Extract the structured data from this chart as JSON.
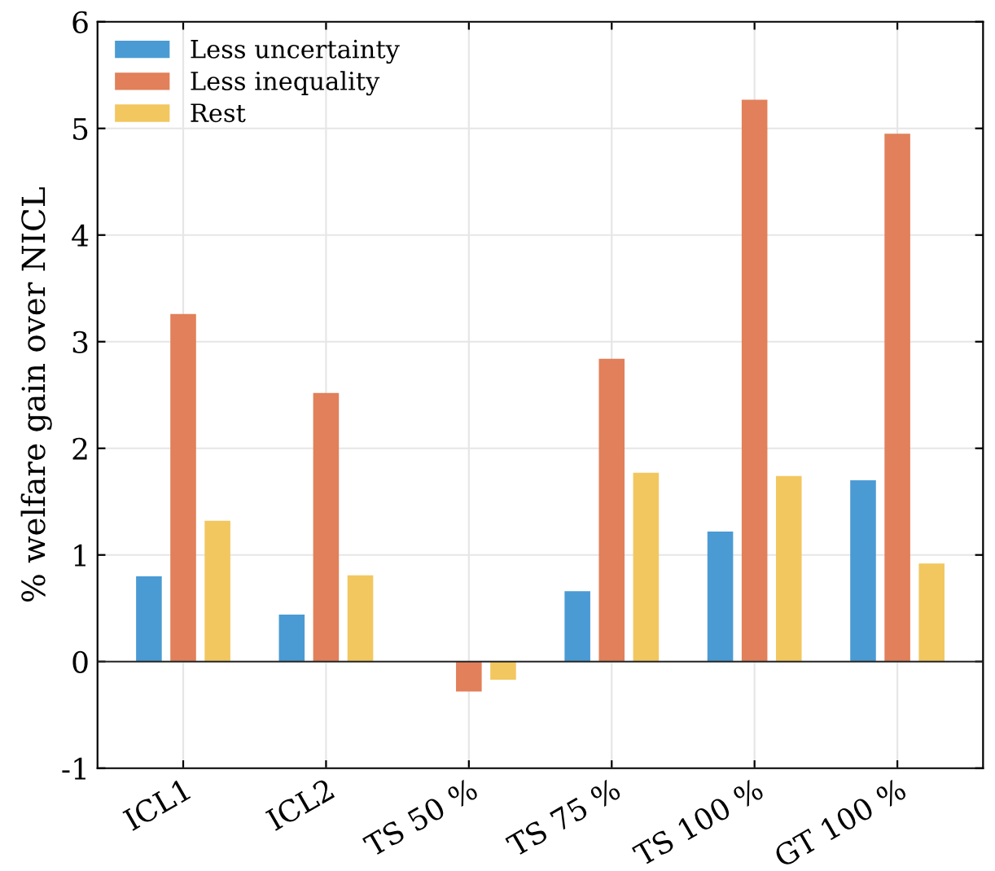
{
  "chart_data": {
    "type": "bar",
    "ylabel": "% welfare gain over NICL",
    "categories": [
      "ICL1",
      "ICL2",
      "TS 50 %",
      "TS 75 %",
      "TS 100 %",
      "GT 100 %"
    ],
    "series": [
      {
        "name": "Less uncertainty",
        "color": "#4a9bd4",
        "values": [
          0.8,
          0.44,
          0.0,
          0.66,
          1.22,
          1.7
        ]
      },
      {
        "name": "Less inequality",
        "color": "#e1805a",
        "values": [
          3.26,
          2.52,
          -0.28,
          2.84,
          5.27,
          4.95
        ]
      },
      {
        "name": "Rest",
        "color": "#f2c75f",
        "values": [
          1.32,
          0.81,
          -0.17,
          1.77,
          1.74,
          0.92
        ]
      }
    ],
    "ylim": [
      -1,
      6
    ],
    "yticks": [
      {
        "value": -1,
        "label": "-1"
      },
      0,
      1,
      2,
      3,
      4,
      5,
      6
    ],
    "ref_lines": [
      {
        "axis": "y",
        "value": 0,
        "color": "#262626"
      }
    ],
    "grid": true,
    "legend": "top left"
  }
}
